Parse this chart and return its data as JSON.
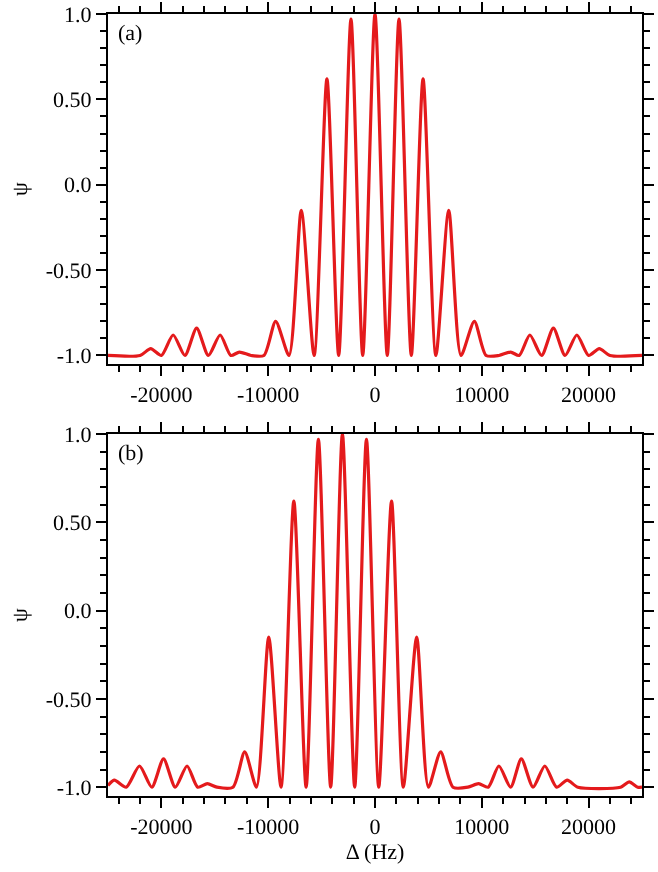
{
  "chart_data": [
    {
      "type": "line",
      "ylabel": "ψ",
      "annotations": [
        "(a)"
      ],
      "xlim": [
        -25000,
        25000
      ],
      "ylim": [
        -1.05,
        1.0
      ],
      "xticks": [
        -20000,
        -10000,
        0,
        10000,
        20000
      ],
      "yticks": [
        {
          "value": 1.0,
          "label": "1.0"
        },
        {
          "value": 0.5,
          "label": "0.50"
        },
        {
          "value": 0,
          "label": "0.0"
        },
        {
          "value": -0.5,
          "label": "-0.50"
        },
        {
          "value": -1.0,
          "label": "-1.0"
        }
      ],
      "x": [
        -25000,
        -22000,
        -21000,
        -20000,
        -18900,
        -17800,
        -16700,
        -15600,
        -14500,
        -13500,
        -12700,
        -11600,
        -10400,
        -9300,
        -8050,
        -6900,
        -5700,
        -4500,
        -3400,
        -2250,
        -1150,
        0,
        1150,
        2250,
        3400,
        4500,
        5700,
        6900,
        8050,
        9300,
        10400,
        11600,
        12700,
        13500,
        14500,
        15600,
        16700,
        17800,
        18900,
        20000,
        21000,
        22000,
        25000
      ],
      "series": [
        {
          "color": "#e41a1c",
          "values": [
            -1,
            -1,
            -0.96,
            -1,
            -0.88,
            -1,
            -0.84,
            -1,
            -0.88,
            -1,
            -0.98,
            -1,
            -1,
            -0.8,
            -1,
            -0.15,
            -1,
            0.62,
            -1,
            0.97,
            -1,
            1.0,
            -1,
            0.97,
            -1,
            0.62,
            -1,
            -0.15,
            -1,
            -0.8,
            -1,
            -1,
            -0.98,
            -1,
            -0.88,
            -1,
            -0.84,
            -1,
            -0.88,
            -1,
            -0.96,
            -1,
            -1
          ]
        }
      ]
    },
    {
      "type": "line",
      "xlabel": "Δ (Hz)",
      "ylabel": "ψ",
      "annotations": [
        "(b)"
      ],
      "xlim": [
        -25000,
        25000
      ],
      "ylim": [
        -1.05,
        1.0
      ],
      "xticks": [
        -20000,
        -10000,
        0,
        10000,
        20000
      ],
      "yticks": [
        {
          "value": 1.0,
          "label": "1.0"
        },
        {
          "value": 0.5,
          "label": "0.50"
        },
        {
          "value": 0,
          "label": "0.0"
        },
        {
          "value": -0.5,
          "label": "-0.50"
        },
        {
          "value": -1.0,
          "label": "-1.0"
        }
      ],
      "x": [
        -25000,
        -24400,
        -23300,
        -22050,
        -20900,
        -19800,
        -18700,
        -17600,
        -16600,
        -15700,
        -14800,
        -13300,
        -12200,
        -11100,
        -9950,
        -8800,
        -7600,
        -6450,
        -5300,
        -4150,
        -3050,
        -1900,
        -800,
        350,
        1550,
        2650,
        3900,
        5000,
        6150,
        7300,
        8700,
        9700,
        10600,
        11600,
        12700,
        13700,
        14800,
        15900,
        17000,
        18000,
        19000,
        23000,
        23800,
        24600,
        25000
      ],
      "series": [
        {
          "color": "#e41a1c",
          "values": [
            -0.99,
            -0.96,
            -1,
            -0.88,
            -1,
            -0.84,
            -1,
            -0.88,
            -1,
            -0.98,
            -1,
            -1,
            -0.8,
            -1,
            -0.15,
            -1,
            0.62,
            -1,
            0.97,
            -1,
            1.0,
            -1,
            0.97,
            -1,
            0.62,
            -1,
            -0.15,
            -1,
            -0.8,
            -1,
            -1,
            -0.98,
            -1,
            -0.88,
            -1,
            -0.84,
            -1,
            -0.88,
            -1,
            -0.96,
            -1,
            -1,
            -0.97,
            -1,
            -1
          ]
        }
      ]
    }
  ]
}
